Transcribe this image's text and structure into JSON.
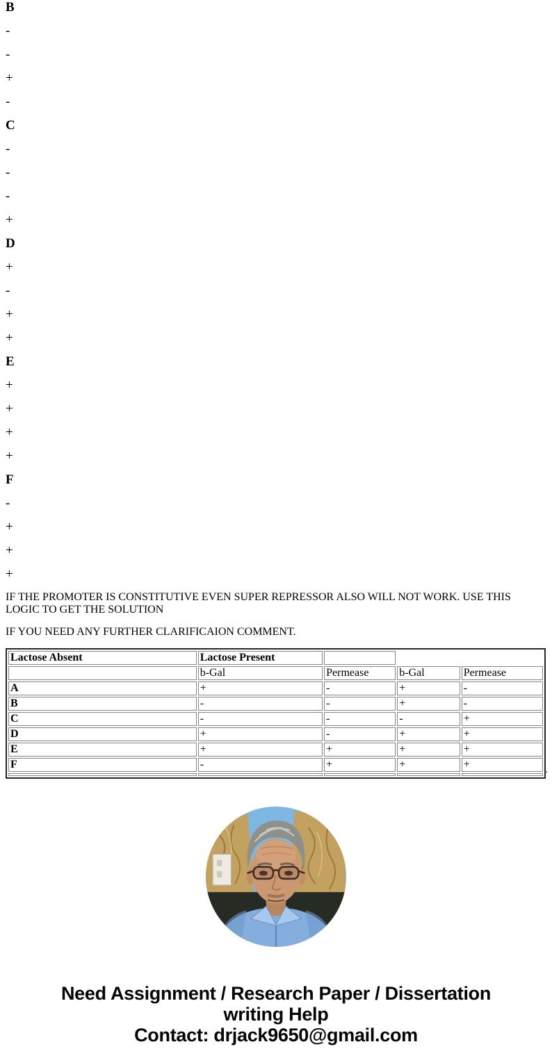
{
  "sequence": [
    {
      "label": "B",
      "bold": true
    },
    {
      "label": "-",
      "bold": false
    },
    {
      "label": "-",
      "bold": false
    },
    {
      "label": "+",
      "bold": false
    },
    {
      "label": "-",
      "bold": false
    },
    {
      "label": "C",
      "bold": true
    },
    {
      "label": "-",
      "bold": false
    },
    {
      "label": "-",
      "bold": false
    },
    {
      "label": "-",
      "bold": false
    },
    {
      "label": "+",
      "bold": false
    },
    {
      "label": "D",
      "bold": true
    },
    {
      "label": "+",
      "bold": false
    },
    {
      "label": "-",
      "bold": false
    },
    {
      "label": "+",
      "bold": false
    },
    {
      "label": "+",
      "bold": false
    },
    {
      "label": "E",
      "bold": true
    },
    {
      "label": "+",
      "bold": false
    },
    {
      "label": "+",
      "bold": false
    },
    {
      "label": "+",
      "bold": false
    },
    {
      "label": "+",
      "bold": false
    },
    {
      "label": "F",
      "bold": true
    },
    {
      "label": "-",
      "bold": false
    },
    {
      "label": "+",
      "bold": false
    },
    {
      "label": "+",
      "bold": false
    },
    {
      "label": "+",
      "bold": false
    }
  ],
  "notes": {
    "promoter_note": "IF THE PROMOTER IS CONSTITUTIVE EVEN SUPER REPRESSOR ALSO WILL NOT WORK. USE THIS LOGIC TO GET THE SOLUTION",
    "clarification_note": "IF YOU NEED ANY FURTHER CLARIFICAION COMMENT."
  },
  "results_table": {
    "header_row1": [
      "Lactose Absent",
      "Lactose Present",
      ""
    ],
    "header_row2": [
      "",
      "b-Gal",
      "Permease",
      "b-Gal",
      "Permease"
    ],
    "rows": [
      {
        "label": "A",
        "values": [
          "+",
          "-",
          "+",
          "-"
        ]
      },
      {
        "label": "B",
        "values": [
          "-",
          "-",
          "+",
          "-"
        ]
      },
      {
        "label": "C",
        "values": [
          "-",
          "-",
          "-",
          "+"
        ]
      },
      {
        "label": "D",
        "values": [
          "+",
          "-",
          "+",
          "+"
        ]
      },
      {
        "label": "E",
        "values": [
          "+",
          "+",
          "+",
          "+"
        ]
      },
      {
        "label": "F",
        "values": [
          "-",
          "+",
          "+",
          "+"
        ]
      }
    ],
    "trailing_period": ".",
    "column_widths_pct": [
      34.4,
      22.8,
      13.1,
      11.5,
      14.9
    ],
    "outer_border_color": "#262626",
    "cell_border_color": "#858585"
  },
  "portrait": {
    "alt": "tutor headshot: elderly man with gray hair and glasses, light blue shirt",
    "colors": {
      "sky": "#7db7e2",
      "curtain": "#c2a161",
      "curtain_pattern": "#7c5c28",
      "dark_band": "#262b23",
      "shirt": "#85aede",
      "collar": "#a9c8ee",
      "skin": "#cc9872",
      "hair": "#90908b"
    }
  },
  "footer": {
    "line1": "Need Assignment / Research Paper / Dissertation",
    "line2": "writing Help",
    "line3": "Contact: drjack9650@gmail.com"
  }
}
